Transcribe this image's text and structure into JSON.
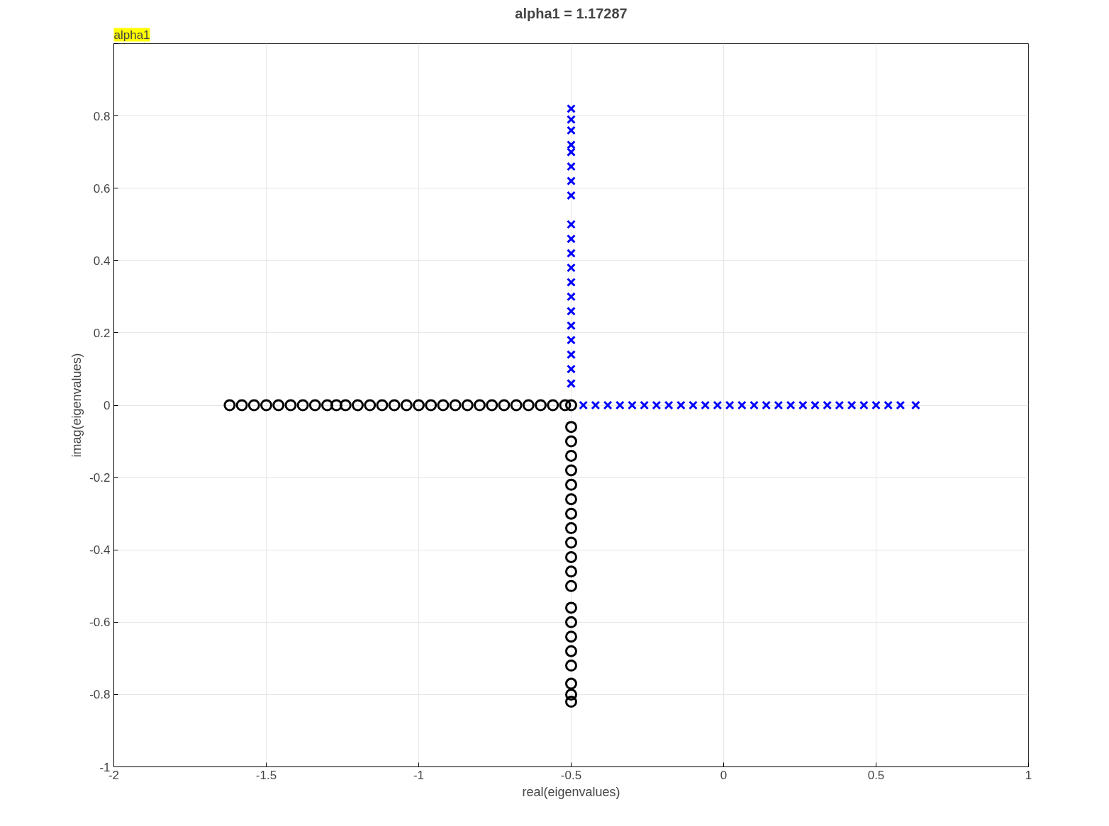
{
  "chart_data": {
    "type": "scatter",
    "title": "alpha1 = 1.17287",
    "xlabel": "real(eigenvalues)",
    "ylabel": "imag(eigenvalues)",
    "annotations": [
      "alpha1"
    ],
    "xlim": [
      -2,
      1
    ],
    "ylim": [
      -1,
      1
    ],
    "xticks": [
      -2,
      -1.5,
      -1,
      -0.5,
      0,
      0.5,
      1
    ],
    "yticks": [
      -1,
      -0.8,
      -0.6,
      -0.4,
      -0.2,
      0,
      0.2,
      0.4,
      0.6,
      0.8,
      {
        "value": 1,
        "label": null
      }
    ],
    "grid": true,
    "series": [
      {
        "color": "#000000",
        "marker": "circle",
        "x": [
          -1.62,
          -1.58,
          -1.54,
          -1.5,
          -1.46,
          -1.42,
          -1.38,
          -1.34,
          -1.3,
          -1.27,
          -1.24,
          -1.2,
          -1.16,
          -1.12,
          -1.08,
          -1.04,
          -1.0,
          -0.96,
          -0.92,
          -0.88,
          -0.84,
          -0.8,
          -0.76,
          -0.72,
          -0.68,
          -0.64,
          -0.6,
          -0.56,
          -0.52,
          -0.5,
          -0.5,
          -0.5,
          -0.5,
          -0.5,
          -0.5,
          -0.5,
          -0.5,
          -0.5,
          -0.5,
          -0.5,
          -0.5,
          -0.5,
          -0.5,
          -0.5,
          -0.5,
          -0.5,
          -0.5,
          -0.5,
          -0.5,
          -0.5
        ],
        "values": [
          0,
          0,
          0,
          0,
          0,
          0,
          0,
          0,
          0,
          0,
          0,
          0,
          0,
          0,
          0,
          0,
          0,
          0,
          0,
          0,
          0,
          0,
          0,
          0,
          0,
          0,
          0,
          0,
          0,
          0,
          -0.06,
          -0.1,
          -0.14,
          -0.18,
          -0.22,
          -0.26,
          -0.3,
          -0.34,
          -0.38,
          -0.42,
          -0.46,
          -0.5,
          -0.56,
          -0.6,
          -0.64,
          -0.68,
          -0.72,
          -0.77,
          -0.8,
          -0.82
        ]
      },
      {
        "color": "#0000ff",
        "marker": "cross",
        "x": [
          -0.5,
          -0.5,
          -0.5,
          -0.5,
          -0.5,
          -0.5,
          -0.5,
          -0.5,
          -0.5,
          -0.5,
          -0.5,
          -0.5,
          -0.5,
          -0.5,
          -0.5,
          -0.5,
          -0.5,
          -0.5,
          -0.5,
          -0.5,
          -0.46,
          -0.42,
          -0.38,
          -0.34,
          -0.3,
          -0.26,
          -0.22,
          -0.18,
          -0.14,
          -0.1,
          -0.06,
          -0.02,
          0.02,
          0.06,
          0.1,
          0.14,
          0.18,
          0.22,
          0.26,
          0.3,
          0.34,
          0.38,
          0.42,
          0.46,
          0.5,
          0.54,
          0.58,
          0.63
        ],
        "values": [
          0.06,
          0.1,
          0.14,
          0.18,
          0.22,
          0.26,
          0.3,
          0.34,
          0.38,
          0.42,
          0.46,
          0.5,
          0.58,
          0.62,
          0.66,
          0.7,
          0.72,
          0.76,
          0.79,
          0.82,
          0,
          0,
          0,
          0,
          0,
          0,
          0,
          0,
          0,
          0,
          0,
          0,
          0,
          0,
          0,
          0,
          0,
          0,
          0,
          0,
          0,
          0,
          0,
          0,
          0,
          0,
          0,
          0
        ]
      }
    ]
  }
}
